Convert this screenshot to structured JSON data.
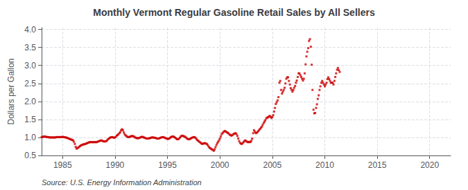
{
  "chart_data": {
    "type": "scatter",
    "title": "Monthly Vermont Regular Gasoline Retail Sales by All Sellers",
    "ylabel": "Dollars per Gallon",
    "annotations": [
      "Source: U.S. Energy Information Administration"
    ],
    "color": "#cc0000",
    "marker": "square",
    "grid": true,
    "xlim": [
      1983.0,
      2022.0
    ],
    "ylim": [
      0.5,
      4.05
    ],
    "xticks": [
      1985,
      1990,
      1995,
      2000,
      2005,
      2010,
      2015,
      2020
    ],
    "yticks": [
      0.5,
      {
        "value": 1.0,
        "label": "1.0"
      },
      1.5,
      {
        "value": 2.0,
        "label": "2.0"
      },
      2.5,
      {
        "value": 3.0,
        "label": "3.0"
      },
      3.5,
      {
        "value": 4.0,
        "label": "4.0"
      }
    ],
    "x": [
      1983.0,
      1983.08,
      1983.17,
      1983.25,
      1983.33,
      1983.42,
      1983.5,
      1983.58,
      1983.67,
      1983.75,
      1983.83,
      1983.92,
      1984.0,
      1984.08,
      1984.17,
      1984.25,
      1984.33,
      1984.42,
      1984.5,
      1984.58,
      1984.67,
      1984.75,
      1984.83,
      1984.92,
      1985.0,
      1985.08,
      1985.17,
      1985.25,
      1985.33,
      1985.42,
      1985.5,
      1985.58,
      1985.67,
      1985.75,
      1985.83,
      1985.92,
      1986.0,
      1986.08,
      1986.17,
      1986.25,
      1986.33,
      1986.42,
      1986.5,
      1986.58,
      1986.67,
      1986.75,
      1986.83,
      1986.92,
      1987.0,
      1987.08,
      1987.17,
      1987.25,
      1987.33,
      1987.42,
      1987.5,
      1987.58,
      1987.67,
      1987.75,
      1987.83,
      1987.92,
      1988.0,
      1988.08,
      1988.17,
      1988.25,
      1988.33,
      1988.42,
      1988.5,
      1988.58,
      1988.67,
      1988.75,
      1988.83,
      1988.92,
      1989.0,
      1989.08,
      1989.17,
      1989.25,
      1989.33,
      1989.42,
      1989.5,
      1989.58,
      1989.67,
      1989.75,
      1989.83,
      1989.92,
      1990.0,
      1990.08,
      1990.17,
      1990.25,
      1990.33,
      1990.42,
      1990.5,
      1990.58,
      1990.67,
      1990.75,
      1990.83,
      1990.92,
      1991.0,
      1991.08,
      1991.17,
      1991.25,
      1991.33,
      1991.42,
      1991.5,
      1991.58,
      1991.67,
      1991.75,
      1991.83,
      1991.92,
      1992.0,
      1992.08,
      1992.17,
      1992.25,
      1992.33,
      1992.42,
      1992.5,
      1992.58,
      1992.67,
      1992.75,
      1992.83,
      1992.92,
      1993.0,
      1993.08,
      1993.17,
      1993.25,
      1993.33,
      1993.42,
      1993.5,
      1993.58,
      1993.67,
      1993.75,
      1993.83,
      1993.92,
      1994.0,
      1994.08,
      1994.17,
      1994.25,
      1994.33,
      1994.42,
      1994.5,
      1994.58,
      1994.67,
      1994.75,
      1994.83,
      1994.92,
      1995.0,
      1995.08,
      1995.17,
      1995.25,
      1995.33,
      1995.42,
      1995.5,
      1995.58,
      1995.67,
      1995.75,
      1995.83,
      1995.92,
      1996.0,
      1996.08,
      1996.17,
      1996.25,
      1996.33,
      1996.42,
      1996.5,
      1996.58,
      1996.67,
      1996.75,
      1996.83,
      1996.92,
      1997.0,
      1997.08,
      1997.17,
      1997.25,
      1997.33,
      1997.42,
      1997.5,
      1997.58,
      1997.67,
      1997.75,
      1997.83,
      1997.92,
      1998.0,
      1998.08,
      1998.17,
      1998.25,
      1998.33,
      1998.42,
      1998.5,
      1998.58,
      1998.67,
      1998.75,
      1998.83,
      1998.92,
      1999.0,
      1999.08,
      1999.17,
      1999.25,
      1999.33,
      1999.42,
      1999.5,
      1999.58,
      1999.67,
      1999.75,
      1999.83,
      1999.92,
      2000.0,
      2000.08,
      2000.17,
      2000.25,
      2000.33,
      2000.42,
      2000.5,
      2000.58,
      2000.67,
      2000.75,
      2000.83,
      2000.92,
      2001.0,
      2001.08,
      2001.17,
      2001.25,
      2001.33,
      2001.42,
      2001.5,
      2001.58,
      2001.67,
      2001.75,
      2001.83,
      2001.92,
      2002.0,
      2002.08,
      2002.17,
      2002.25,
      2002.33,
      2002.42,
      2002.5,
      2002.58,
      2002.67,
      2002.75,
      2002.83,
      2002.92,
      2003.0,
      2003.08,
      2003.17,
      2003.25,
      2003.33,
      2003.42,
      2003.5,
      2003.58,
      2003.67,
      2003.75,
      2003.83,
      2003.92,
      2004.0,
      2004.08,
      2004.17,
      2004.25,
      2004.33,
      2004.42,
      2004.5,
      2004.58,
      2004.67,
      2004.75,
      2004.83,
      2004.92,
      2005.0,
      2005.08,
      2005.17,
      2005.25,
      2005.33,
      2005.42,
      2005.5,
      2005.58,
      2005.67,
      2005.75,
      2005.83,
      2005.92,
      2006.0,
      2006.08,
      2006.17,
      2006.25,
      2006.33,
      2006.42,
      2006.5,
      2006.58,
      2006.67,
      2006.75,
      2006.83,
      2006.92,
      2007.0,
      2007.08,
      2007.17,
      2007.25,
      2007.33,
      2007.42,
      2007.5,
      2007.58,
      2007.67,
      2007.75,
      2007.83,
      2007.92,
      2008.0,
      2008.08,
      2008.17,
      2008.25,
      2008.33,
      2008.42,
      2008.5,
      2008.58,
      2008.67,
      2008.75,
      2008.83,
      2008.92,
      2009.0,
      2009.08,
      2009.17,
      2009.25,
      2009.33,
      2009.42,
      2009.5,
      2009.58,
      2009.67,
      2009.75,
      2009.83,
      2009.92,
      2010.0,
      2010.08,
      2010.17,
      2010.25,
      2010.33,
      2010.42,
      2010.5,
      2010.58,
      2010.67,
      2010.75,
      2010.83,
      2010.92,
      2011.0,
      2011.08,
      2011.17,
      2011.25,
      2011.33,
      2011.42
    ],
    "values": [
      1.01,
      1.01,
      1.02,
      1.03,
      1.02,
      1.02,
      1.01,
      1.01,
      1.01,
      1.0,
      1.0,
      1.0,
      1.0,
      1.0,
      1.0,
      1.0,
      1.0,
      1.01,
      1.01,
      1.01,
      1.01,
      1.01,
      1.01,
      1.01,
      1.02,
      1.01,
      1.01,
      1.0,
      1.0,
      0.99,
      0.98,
      0.97,
      0.96,
      0.95,
      0.94,
      0.93,
      0.92,
      0.88,
      0.82,
      0.74,
      0.69,
      0.7,
      0.72,
      0.74,
      0.76,
      0.78,
      0.79,
      0.8,
      0.81,
      0.81,
      0.82,
      0.83,
      0.84,
      0.85,
      0.86,
      0.87,
      0.87,
      0.87,
      0.87,
      0.87,
      0.87,
      0.87,
      0.87,
      0.87,
      0.88,
      0.89,
      0.9,
      0.91,
      0.92,
      0.91,
      0.9,
      0.89,
      0.89,
      0.89,
      0.9,
      0.92,
      0.95,
      0.97,
      0.99,
      1.0,
      1.01,
      1.01,
      1.0,
      0.99,
      1.0,
      1.02,
      1.05,
      1.07,
      1.09,
      1.12,
      1.15,
      1.2,
      1.23,
      1.2,
      1.14,
      1.09,
      1.06,
      1.04,
      1.02,
      1.01,
      1.01,
      1.02,
      1.03,
      1.04,
      1.04,
      1.03,
      1.02,
      1.0,
      0.99,
      0.98,
      0.98,
      0.98,
      0.99,
      1.0,
      1.01,
      1.02,
      1.01,
      1.0,
      0.99,
      0.98,
      0.97,
      0.97,
      0.97,
      0.98,
      0.98,
      0.99,
      1.0,
      1.0,
      1.0,
      0.99,
      0.99,
      0.98,
      0.97,
      0.97,
      0.97,
      0.98,
      0.99,
      1.0,
      1.01,
      1.01,
      1.0,
      0.99,
      0.98,
      0.97,
      0.96,
      0.96,
      0.97,
      0.99,
      1.01,
      1.02,
      1.03,
      1.02,
      1.01,
      0.99,
      0.97,
      0.95,
      0.95,
      0.96,
      0.99,
      1.02,
      1.04,
      1.05,
      1.04,
      1.03,
      1.02,
      1.0,
      0.98,
      0.96,
      0.95,
      0.95,
      0.96,
      0.98,
      0.99,
      1.0,
      1.01,
      1.01,
      0.99,
      0.96,
      0.93,
      0.91,
      0.89,
      0.87,
      0.85,
      0.83,
      0.82,
      0.83,
      0.84,
      0.84,
      0.83,
      0.82,
      0.79,
      0.75,
      0.72,
      0.7,
      0.68,
      0.67,
      0.65,
      0.63,
      0.67,
      0.73,
      0.79,
      0.84,
      0.88,
      0.92,
      0.97,
      1.03,
      1.09,
      1.12,
      1.15,
      1.17,
      1.18,
      1.16,
      1.14,
      1.13,
      1.11,
      1.08,
      1.07,
      1.05,
      1.06,
      1.08,
      1.1,
      1.11,
      1.12,
      1.09,
      1.04,
      0.97,
      0.9,
      0.85,
      0.83,
      0.82,
      0.84,
      0.87,
      0.9,
      0.92,
      0.9,
      0.88,
      0.87,
      0.87,
      0.88,
      0.87,
      0.91,
      0.97,
      1.12,
      1.2,
      1.16,
      1.12,
      1.13,
      1.15,
      1.18,
      1.21,
      1.24,
      1.27,
      1.3,
      1.35,
      1.4,
      1.44,
      1.48,
      1.53,
      1.55,
      1.56,
      1.58,
      1.6,
      1.57,
      1.54,
      1.57,
      1.62,
      1.72,
      1.82,
      1.93,
      1.98,
      2.03,
      2.12,
      2.52,
      2.57,
      2.32,
      2.22,
      2.27,
      2.32,
      2.38,
      2.5,
      2.63,
      2.67,
      2.67,
      2.57,
      2.47,
      2.37,
      2.32,
      2.27,
      2.32,
      2.38,
      2.43,
      2.52,
      2.58,
      2.68,
      2.78,
      2.78,
      2.73,
      2.68,
      2.63,
      2.58,
      2.63,
      2.78,
      3.03,
      3.25,
      3.38,
      3.48,
      3.68,
      3.73,
      3.52,
      3.02,
      2.32,
      1.77,
      1.67,
      1.68,
      1.82,
      1.92,
      2.07,
      2.17,
      2.32,
      2.42,
      2.52,
      2.57,
      2.52,
      2.47,
      2.42,
      2.47,
      2.52,
      2.62,
      2.67,
      2.62,
      2.57,
      2.52,
      2.52,
      2.52,
      2.47,
      2.57,
      2.68,
      2.78,
      2.88,
      2.93,
      2.87,
      2.82
    ]
  }
}
